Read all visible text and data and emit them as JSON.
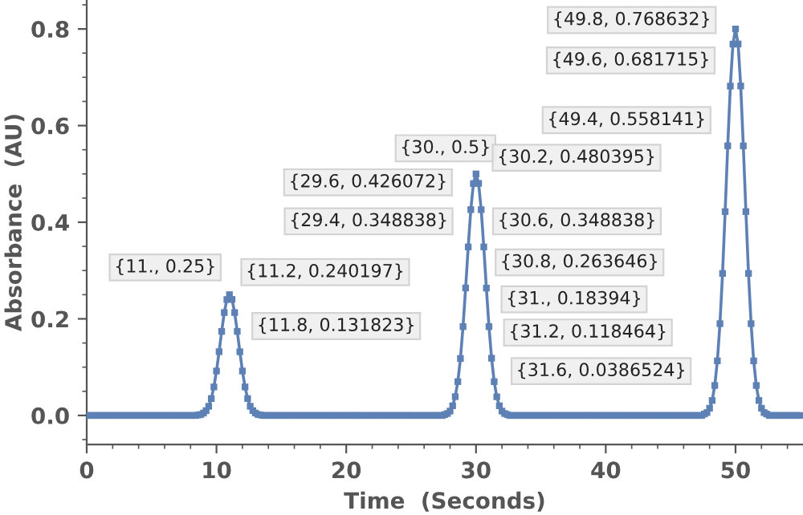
{
  "chart_data": {
    "type": "line",
    "xlabel": "Time  (Seconds)",
    "ylabel": "Absorbance  (AU)",
    "xlim": [
      0,
      55.2
    ],
    "ylim": [
      -0.06,
      0.86
    ],
    "xticks": [
      0,
      10,
      20,
      30,
      40,
      50
    ],
    "yticks": [
      {
        "value": 0,
        "label": "0.0"
      },
      {
        "value": 0.2,
        "label": "0.2"
      },
      {
        "value": 0.4,
        "label": "0.4"
      },
      {
        "value": 0.6,
        "label": "0.6"
      },
      {
        "value": 0.8,
        "label": "0.8"
      }
    ],
    "grid": false,
    "marker": "square",
    "line_style": "solid",
    "series": [
      {
        "color": "#5e81b5",
        "x": [
          0,
          0.2,
          0.4,
          0.6,
          0.8,
          1,
          1.2,
          1.4,
          1.6,
          1.8,
          2,
          2.2,
          2.4,
          2.6,
          2.8,
          3,
          3.2,
          3.4,
          3.6,
          3.8,
          4,
          4.2,
          4.4,
          4.6,
          4.8,
          5,
          5.2,
          5.4,
          5.6,
          5.8,
          6,
          6.2,
          6.4,
          6.6,
          6.8,
          7,
          7.2,
          7.4,
          7.6,
          7.8,
          8,
          8.2,
          8.4,
          8.6,
          8.8,
          9,
          9.2,
          9.4,
          9.6,
          9.8,
          10,
          10.2,
          10.4,
          10.6,
          10.8,
          11,
          11.2,
          11.4,
          11.6,
          11.8,
          12,
          12.2,
          12.4,
          12.6,
          12.8,
          13,
          13.2,
          13.4,
          13.6,
          13.8,
          14,
          14.2,
          14.4,
          14.6,
          14.8,
          15,
          15.2,
          15.4,
          15.6,
          15.8,
          16,
          16.2,
          16.4,
          16.6,
          16.8,
          17,
          17.2,
          17.4,
          17.6,
          17.8,
          18,
          18.2,
          18.4,
          18.6,
          18.8,
          19,
          19.2,
          19.4,
          19.6,
          19.8,
          20,
          20.2,
          20.4,
          20.6,
          20.8,
          21,
          21.2,
          21.4,
          21.6,
          21.8,
          22,
          22.2,
          22.4,
          22.6,
          22.8,
          23,
          23.2,
          23.4,
          23.6,
          23.8,
          24,
          24.2,
          24.4,
          24.6,
          24.8,
          25,
          25.2,
          25.4,
          25.6,
          25.8,
          26,
          26.2,
          26.4,
          26.6,
          26.8,
          27,
          27.2,
          27.4,
          27.6,
          27.8,
          28,
          28.2,
          28.4,
          28.6,
          28.8,
          29,
          29.2,
          29.4,
          29.6,
          29.8,
          30,
          30.2,
          30.4,
          30.6,
          30.8,
          31,
          31.2,
          31.4,
          31.6,
          31.8,
          32,
          32.2,
          32.4,
          32.6,
          32.8,
          33,
          33.2,
          33.4,
          33.6,
          33.8,
          34,
          34.2,
          34.4,
          34.6,
          34.8,
          35,
          35.2,
          35.4,
          35.6,
          35.8,
          36,
          36.2,
          36.4,
          36.6,
          36.8,
          37,
          37.2,
          37.4,
          37.6,
          37.8,
          38,
          38.2,
          38.4,
          38.6,
          38.8,
          39,
          39.2,
          39.4,
          39.6,
          39.8,
          40,
          40.2,
          40.4,
          40.6,
          40.8,
          41,
          41.2,
          41.4,
          41.6,
          41.8,
          42,
          42.2,
          42.4,
          42.6,
          42.8,
          43,
          43.2,
          43.4,
          43.6,
          43.8,
          44,
          44.2,
          44.4,
          44.6,
          44.8,
          45,
          45.2,
          45.4,
          45.6,
          45.8,
          46,
          46.2,
          46.4,
          46.6,
          46.8,
          47,
          47.2,
          47.4,
          47.6,
          47.8,
          48,
          48.2,
          48.4,
          48.6,
          48.8,
          49,
          49.2,
          49.4,
          49.6,
          49.8,
          50,
          50.2,
          50.4,
          50.6,
          50.8,
          51,
          51.2,
          51.4,
          51.6,
          51.8,
          52,
          52.2,
          52.4,
          52.6,
          52.8,
          53,
          53.2,
          53.4,
          53.6,
          53.8,
          54,
          54.2,
          54.4,
          54.6,
          54.8,
          55
        ],
        "values": [
          0,
          0,
          0,
          0,
          0,
          0,
          0,
          0,
          0,
          0,
          0,
          0,
          0,
          0,
          0,
          0,
          0,
          0,
          0,
          0,
          0,
          0,
          0,
          0,
          0,
          0,
          0,
          0,
          0,
          0,
          0,
          0,
          0,
          0,
          0,
          0,
          0,
          0,
          0,
          0,
          0,
          0,
          0,
          0.001,
          0.002,
          0.005,
          0.01,
          0.019,
          0.035,
          0.059,
          0.092,
          0.132,
          0.174,
          0.213,
          0.24,
          0.25,
          0.240197,
          0.213,
          0.174,
          0.131823,
          0.092,
          0.059,
          0.035,
          0.019,
          0.01,
          0.005,
          0.002,
          0.001,
          0,
          0,
          0,
          0,
          0,
          0,
          0,
          0,
          0,
          0,
          0,
          0,
          0,
          0,
          0,
          0,
          0,
          0,
          0,
          0,
          0,
          0,
          0,
          0,
          0,
          0,
          0,
          0,
          0,
          0,
          0,
          0,
          0,
          0,
          0,
          0,
          0,
          0,
          0,
          0,
          0,
          0,
          0,
          0,
          0,
          0,
          0,
          0,
          0,
          0,
          0,
          0,
          0,
          0,
          0,
          0,
          0,
          0,
          0,
          0,
          0,
          0,
          0,
          0,
          0,
          0,
          0,
          0,
          0,
          0,
          0.002,
          0.004,
          0.009,
          0.02,
          0.039,
          0.07,
          0.118,
          0.184,
          0.264,
          0.348838,
          0.426072,
          0.48,
          0.5,
          0.480395,
          0.426,
          0.348838,
          0.263646,
          0.18394,
          0.118464,
          0.07,
          0.0386524,
          0.02,
          0.009,
          0.004,
          0.002,
          0,
          0,
          0,
          0,
          0,
          0,
          0,
          0,
          0,
          0,
          0,
          0,
          0,
          0,
          0,
          0,
          0,
          0,
          0,
          0,
          0,
          0,
          0,
          0,
          0,
          0,
          0,
          0,
          0,
          0,
          0,
          0,
          0,
          0,
          0,
          0,
          0,
          0,
          0,
          0,
          0,
          0,
          0,
          0,
          0,
          0,
          0,
          0,
          0,
          0,
          0,
          0,
          0,
          0,
          0,
          0,
          0,
          0,
          0,
          0,
          0,
          0,
          0,
          0,
          0,
          0,
          0,
          0,
          0,
          0,
          0,
          0,
          0,
          0,
          0,
          0.003,
          0.006,
          0.015,
          0.031,
          0.062,
          0.113,
          0.19,
          0.294,
          0.422,
          0.558141,
          0.681715,
          0.768632,
          0.8,
          0.769,
          0.682,
          0.558,
          0.422,
          0.294,
          0.19,
          0.113,
          0.062,
          0.031,
          0.015,
          0.006,
          0.003,
          0,
          0,
          0,
          0,
          0,
          0,
          0,
          0,
          0,
          0,
          0,
          0,
          0
        ]
      }
    ],
    "annotations": [
      {
        "text": "{11., 0.25}",
        "x": 11,
        "y": 0.25
      },
      {
        "text": "{11.2, 0.240197}",
        "x": 11.2,
        "y": 0.240197
      },
      {
        "text": "{11.8, 0.131823}",
        "x": 11.8,
        "y": 0.131823
      },
      {
        "text": "{29.4, 0.348838}",
        "x": 29.4,
        "y": 0.348838
      },
      {
        "text": "{29.6, 0.426072}",
        "x": 29.6,
        "y": 0.426072
      },
      {
        "text": "{30., 0.5}",
        "x": 30,
        "y": 0.5
      },
      {
        "text": "{30.2, 0.480395}",
        "x": 30.2,
        "y": 0.480395
      },
      {
        "text": "{30.6, 0.348838}",
        "x": 30.6,
        "y": 0.348838
      },
      {
        "text": "{30.8, 0.263646}",
        "x": 30.8,
        "y": 0.263646
      },
      {
        "text": "{31., 0.18394}",
        "x": 31,
        "y": 0.18394
      },
      {
        "text": "{31.2, 0.118464}",
        "x": 31.2,
        "y": 0.118464
      },
      {
        "text": "{31.6, 0.0386524}",
        "x": 31.6,
        "y": 0.0386524
      },
      {
        "text": "{49.4, 0.558141}",
        "x": 49.4,
        "y": 0.558141
      },
      {
        "text": "{49.6, 0.681715}",
        "x": 49.6,
        "y": 0.681715
      },
      {
        "text": "{49.8, 0.768632}",
        "x": 49.8,
        "y": 0.768632
      }
    ]
  }
}
